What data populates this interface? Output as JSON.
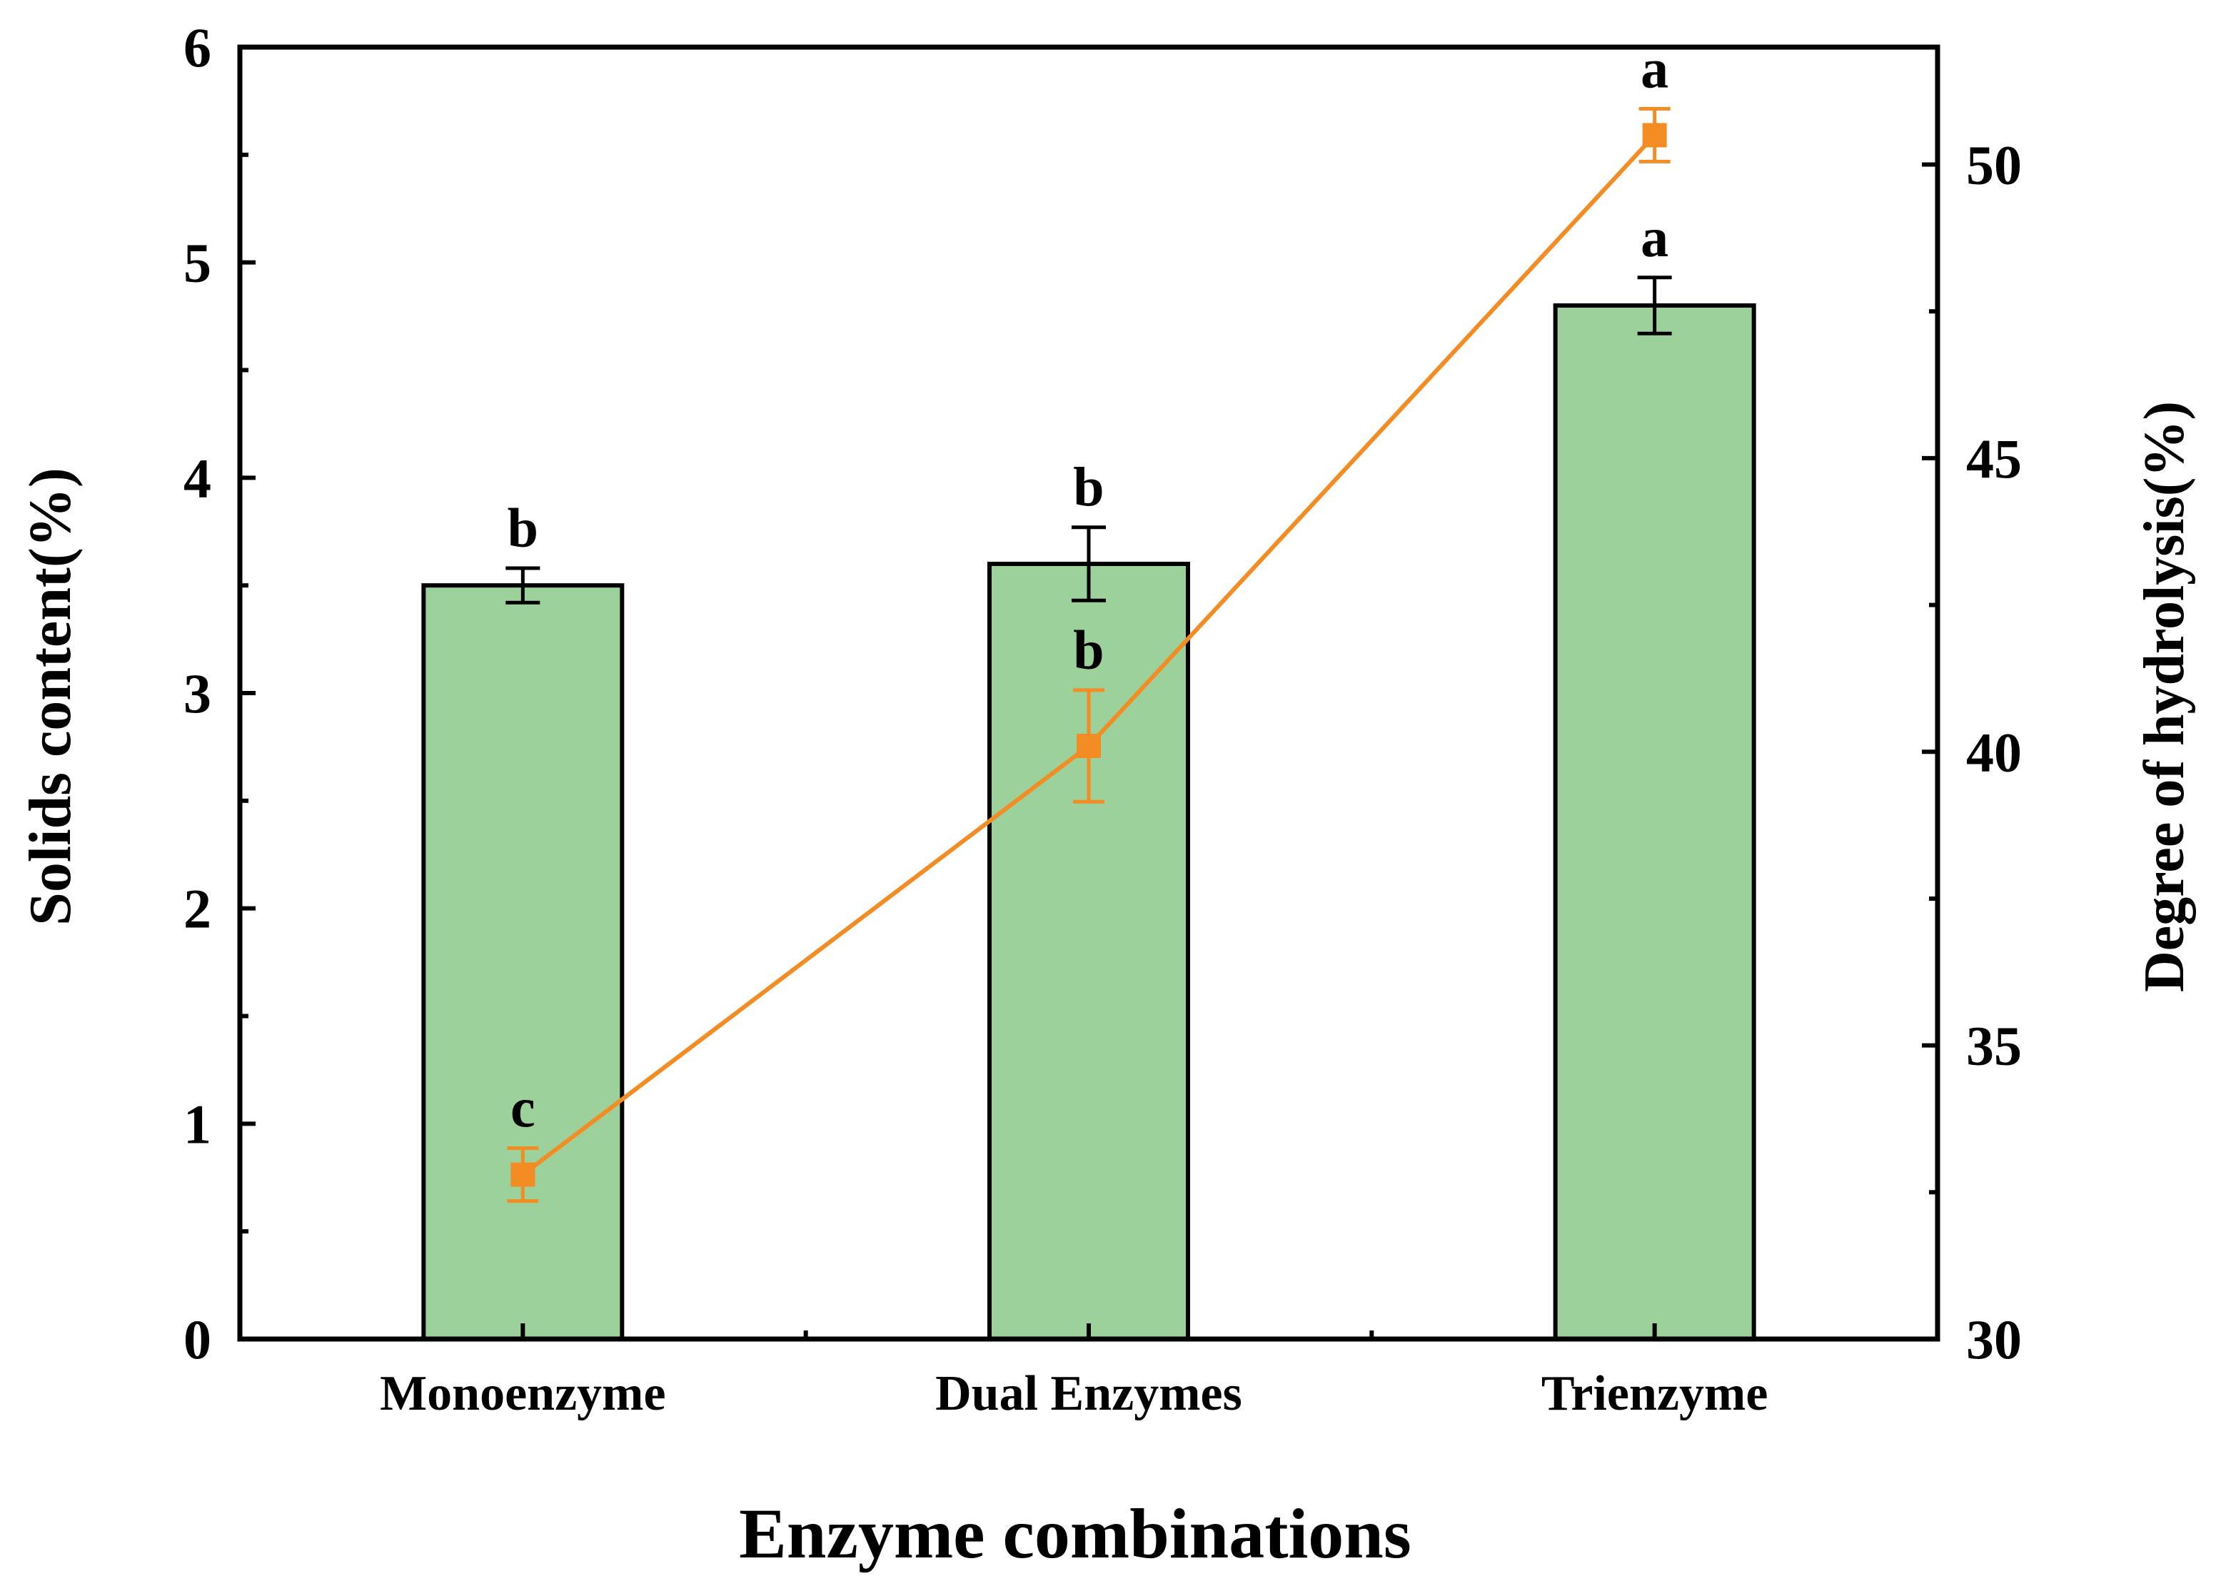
{
  "chart_data": {
    "type": "bar+line",
    "title": "",
    "xlabel": "Enzyme combinations",
    "categories": [
      "Monoenzyme",
      "Dual Enzymes",
      "Trienzyme"
    ],
    "y_left": {
      "label": "Solids content(%)",
      "lim": [
        0,
        6
      ],
      "ticks": [
        "0",
        "1",
        "2",
        "3",
        "4",
        "5",
        "6"
      ]
    },
    "y_right": {
      "label": "Degree of hydrolysis(%)",
      "lim": [
        30,
        52
      ],
      "ticks": [
        "30",
        "35",
        "40",
        "45",
        "50"
      ]
    },
    "series": [
      {
        "name": "Solids content",
        "type": "bar",
        "axis": "left",
        "values": [
          3.5,
          3.6,
          4.8
        ],
        "errors": [
          0.08,
          0.17,
          0.13
        ],
        "letters": [
          "b",
          "b",
          "a"
        ],
        "color": "#9dd19b"
      },
      {
        "name": "Degree of hydrolysis",
        "type": "line",
        "axis": "right",
        "values": [
          32.8,
          40.1,
          50.5
        ],
        "errors": [
          0.45,
          0.95,
          0.45
        ],
        "letters": [
          "c",
          "b",
          "a"
        ],
        "color": "#f38c23"
      }
    ]
  }
}
